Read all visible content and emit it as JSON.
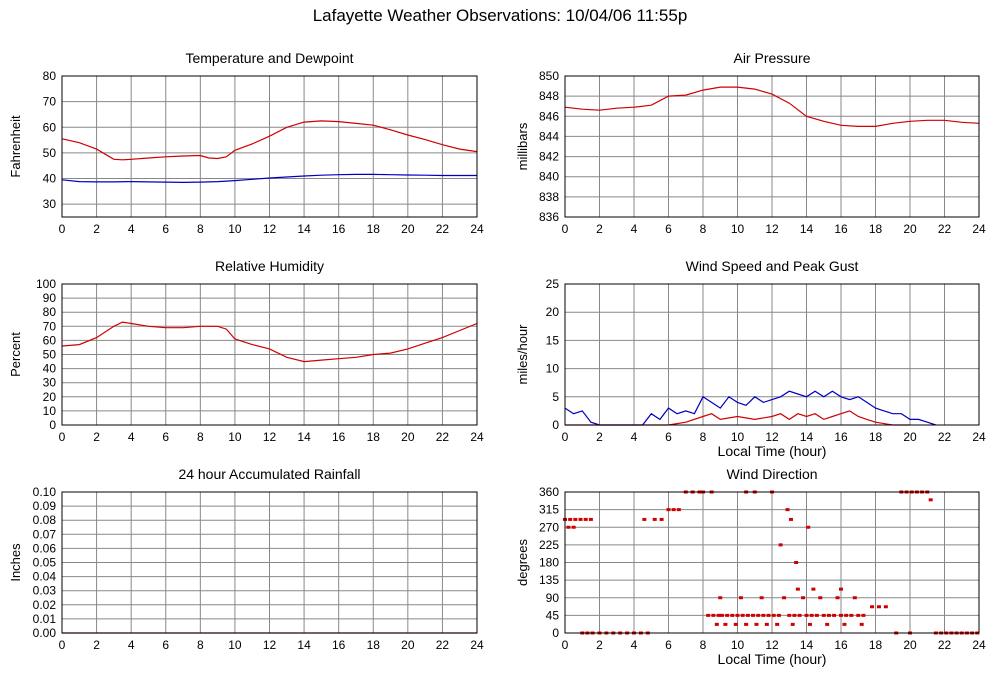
{
  "page": {
    "title": "Lafayette Weather Observations: 10/04/06 11:55p"
  },
  "colors": {
    "primary": "#d00000",
    "secondary": "#0000c0",
    "grid": "#888888",
    "axis": "#000000"
  },
  "chart_data": [
    {
      "id": "temp",
      "type": "line",
      "title": "Temperature and Dewpoint",
      "ylabel": "Fahrenheit",
      "xlabel": "",
      "xlim": [
        0,
        24
      ],
      "ylim": [
        25,
        80
      ],
      "xticks": [
        0,
        2,
        4,
        6,
        8,
        10,
        12,
        14,
        16,
        18,
        20,
        22,
        24
      ],
      "yticks": [
        30,
        40,
        50,
        60,
        70,
        80
      ],
      "grid": true,
      "series": [
        {
          "color": "#d00000",
          "x": [
            0,
            1,
            2,
            2.5,
            3,
            3.5,
            4,
            5,
            6,
            7,
            8,
            8.5,
            9,
            9.5,
            10,
            11,
            12,
            13,
            14,
            15,
            16,
            17,
            18,
            19,
            20,
            21,
            22,
            23,
            24
          ],
          "values": [
            55.5,
            54,
            51.5,
            49.5,
            47.5,
            47.3,
            47.5,
            48,
            48.5,
            48.8,
            49,
            48,
            47.8,
            48.5,
            51,
            53.5,
            56.5,
            60,
            62,
            62.5,
            62.2,
            61.5,
            60.8,
            59,
            57,
            55.2,
            53.2,
            51.5,
            50.5
          ]
        },
        {
          "color": "#0000c0",
          "x": [
            0,
            1,
            2,
            3,
            4,
            5,
            6,
            7,
            8,
            9,
            10,
            11,
            12,
            13,
            14,
            15,
            16,
            17,
            18,
            19,
            20,
            21,
            22,
            23,
            24
          ],
          "values": [
            39.5,
            38.8,
            38.7,
            38.7,
            38.8,
            38.7,
            38.6,
            38.5,
            38.6,
            38.8,
            39.2,
            39.7,
            40.2,
            40.6,
            41,
            41.3,
            41.5,
            41.6,
            41.6,
            41.5,
            41.4,
            41.3,
            41.2,
            41.2,
            41.2
          ]
        }
      ]
    },
    {
      "id": "pressure",
      "type": "line",
      "title": "Air Pressure",
      "ylabel": "millibars",
      "xlabel": "",
      "xlim": [
        0,
        24
      ],
      "ylim": [
        836,
        850
      ],
      "xticks": [
        0,
        2,
        4,
        6,
        8,
        10,
        12,
        14,
        16,
        18,
        20,
        22,
        24
      ],
      "yticks": [
        836,
        838,
        840,
        842,
        844,
        846,
        848,
        850
      ],
      "grid": true,
      "series": [
        {
          "color": "#d00000",
          "x": [
            0,
            1,
            2,
            3,
            4,
            5,
            6,
            7,
            8,
            9,
            10,
            11,
            12,
            13,
            14,
            15,
            16,
            17,
            18,
            19,
            20,
            21,
            22,
            23,
            24
          ],
          "values": [
            846.9,
            846.7,
            846.6,
            846.8,
            846.9,
            847.1,
            848,
            848.1,
            848.6,
            848.9,
            848.9,
            848.7,
            848.2,
            847.3,
            846,
            845.5,
            845.1,
            845,
            845,
            845.3,
            845.5,
            845.6,
            845.6,
            845.4,
            845.3
          ]
        }
      ]
    },
    {
      "id": "humidity",
      "type": "line",
      "title": "Relative Humidity",
      "ylabel": "Percent",
      "xlabel": "",
      "xlim": [
        0,
        24
      ],
      "ylim": [
        0,
        100
      ],
      "xticks": [
        0,
        2,
        4,
        6,
        8,
        10,
        12,
        14,
        16,
        18,
        20,
        22,
        24
      ],
      "yticks": [
        0,
        10,
        20,
        30,
        40,
        50,
        60,
        70,
        80,
        90,
        100
      ],
      "grid": true,
      "series": [
        {
          "color": "#d00000",
          "x": [
            0,
            1,
            2,
            3,
            3.5,
            4,
            5,
            6,
            7,
            8,
            8.5,
            9,
            9.5,
            10,
            11,
            12,
            13,
            14,
            15,
            16,
            17,
            18,
            19,
            20,
            21,
            22,
            23,
            24
          ],
          "values": [
            56,
            57,
            62,
            70,
            73,
            72,
            70,
            69,
            69,
            70,
            70,
            70,
            68,
            61,
            57,
            54,
            48,
            45,
            46,
            47,
            48,
            50,
            51,
            54,
            58,
            62,
            67,
            72
          ]
        }
      ]
    },
    {
      "id": "wind",
      "type": "line",
      "title": "Wind Speed and Peak Gust",
      "ylabel": "miles/hour",
      "xlabel": "Local Time (hour)",
      "xlim": [
        0,
        24
      ],
      "ylim": [
        0,
        25
      ],
      "xticks": [
        0,
        2,
        4,
        6,
        8,
        10,
        12,
        14,
        16,
        18,
        20,
        22,
        24
      ],
      "yticks": [
        0,
        5,
        10,
        15,
        20,
        25
      ],
      "grid": true,
      "series": [
        {
          "color": "#0000c0",
          "x": [
            0,
            0.5,
            1,
            1.5,
            2,
            4.5,
            5,
            5.5,
            6,
            6.5,
            7,
            7.5,
            8,
            8.5,
            9,
            9.5,
            10,
            10.5,
            11,
            11.5,
            12,
            12.5,
            13,
            13.5,
            14,
            14.5,
            15,
            15.5,
            16,
            16.5,
            17,
            17.5,
            18,
            18.5,
            19,
            19.5,
            20,
            20.5,
            21,
            21.5
          ],
          "values": [
            3,
            2,
            2.5,
            0.5,
            0,
            0,
            2,
            1,
            3,
            2,
            2.5,
            2,
            5,
            4,
            3,
            5,
            4,
            3.5,
            5,
            4,
            4.5,
            5,
            6,
            5.5,
            5,
            6,
            5,
            6,
            5,
            4.5,
            5,
            4,
            3,
            2.5,
            2,
            2,
            1,
            1,
            0.5,
            0
          ]
        },
        {
          "color": "#d00000",
          "x": [
            0,
            1,
            2,
            6,
            7,
            8,
            8.5,
            9,
            10,
            11,
            12,
            12.5,
            13,
            13.5,
            14,
            14.5,
            15,
            15.5,
            16,
            16.5,
            17,
            17.5,
            18,
            19,
            20
          ],
          "values": [
            0,
            0,
            0,
            0,
            0.5,
            1.5,
            2,
            1,
            1.5,
            1,
            1.5,
            2,
            1,
            2,
            1.5,
            2,
            1,
            1.5,
            2,
            2.5,
            1.5,
            1,
            0.5,
            0,
            0
          ]
        }
      ]
    },
    {
      "id": "rain",
      "type": "line",
      "title": "24 hour Accumulated Rainfall",
      "ylabel": "Inches",
      "xlabel": "",
      "xlim": [
        0,
        24
      ],
      "ylim": [
        0,
        0.1
      ],
      "xticks": [
        0,
        2,
        4,
        6,
        8,
        10,
        12,
        14,
        16,
        18,
        20,
        22,
        24
      ],
      "yticks": [
        "0.00",
        "0.01",
        "0.02",
        "0.03",
        "0.04",
        "0.05",
        "0.06",
        "0.07",
        "0.08",
        "0.09",
        "0.10"
      ],
      "grid": true,
      "series": [
        {
          "color": "#d00000",
          "x": [
            0,
            24
          ],
          "values": [
            0,
            0
          ]
        }
      ]
    },
    {
      "id": "direction",
      "type": "scatter",
      "title": "Wind Direction",
      "ylabel": "degrees",
      "xlabel": "Local Time (hour)",
      "xlim": [
        0,
        24
      ],
      "ylim": [
        0,
        360
      ],
      "xticks": [
        0,
        2,
        4,
        6,
        8,
        10,
        12,
        14,
        16,
        18,
        20,
        22,
        24
      ],
      "yticks": [
        0,
        45,
        90,
        135,
        180,
        225,
        270,
        315,
        360
      ],
      "grid": true,
      "series": [
        {
          "color": "#d00000",
          "x": [
            0,
            0.3,
            0.6,
            0.9,
            1.2,
            1.5,
            0.2,
            0.5,
            1.0,
            1.3,
            1.6,
            2.0,
            2.4,
            2.8,
            3.2,
            3.6,
            4.0,
            4.4,
            4.8,
            4.6,
            5.2,
            5.6,
            6.0,
            6.3,
            6.6,
            7.0,
            7.4,
            7.8,
            8.0,
            8.3,
            8.6,
            8.9,
            9.1,
            9.4,
            9.7,
            10.0,
            10.3,
            10.6,
            10.9,
            11.2,
            11.5,
            11.8,
            12.1,
            12.4,
            8.8,
            9.3,
            9.9,
            10.5,
            11.1,
            11.7,
            12.3,
            9.0,
            10.2,
            11.4,
            12.7,
            13.0,
            13.3,
            13.6,
            14.0,
            14.3,
            14.6,
            15.0,
            15.3,
            15.6,
            16.0,
            16.3,
            16.6,
            17.0,
            17.3,
            13.8,
            14.8,
            15.8,
            16.8,
            13.2,
            14.2,
            15.2,
            16.2,
            17.2,
            17.8,
            18.2,
            18.6,
            12.9,
            13.1,
            14.1,
            13.5,
            14.4,
            8.5,
            10.5,
            11.0,
            12.0,
            16.0,
            19.5,
            19.8,
            20.1,
            20.4,
            20.7,
            21.0,
            21.2,
            19.2,
            20.0,
            21.5,
            21.8,
            22.1,
            22.4,
            22.7,
            23.0,
            23.3,
            23.6,
            23.9,
            12.5,
            13.4
          ],
          "values": [
            290,
            290,
            290,
            290,
            290,
            290,
            270,
            270,
            0,
            0,
            0,
            0,
            0,
            0,
            0,
            0,
            0,
            0,
            0,
            290,
            290,
            290,
            315,
            315,
            315,
            360,
            360,
            360,
            360,
            45,
            45,
            45,
            45,
            45,
            45,
            45,
            45,
            45,
            45,
            45,
            45,
            45,
            45,
            45,
            22,
            22,
            22,
            22,
            22,
            22,
            22,
            90,
            90,
            90,
            90,
            45,
            45,
            45,
            45,
            45,
            45,
            45,
            45,
            45,
            45,
            45,
            45,
            45,
            45,
            90,
            90,
            90,
            90,
            22,
            22,
            22,
            22,
            22,
            67,
            67,
            67,
            315,
            290,
            270,
            112,
            112,
            360,
            360,
            360,
            360,
            112,
            360,
            360,
            360,
            360,
            360,
            360,
            340,
            0,
            0,
            0,
            0,
            0,
            0,
            0,
            0,
            0,
            0,
            0,
            225,
            180
          ]
        }
      ]
    }
  ]
}
